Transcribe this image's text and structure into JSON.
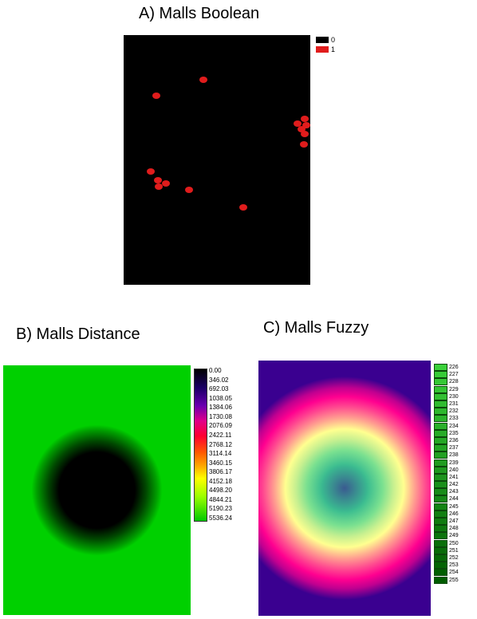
{
  "titles": {
    "a": "A) Malls Boolean",
    "b": "B) Malls Distance",
    "c": "C) Malls Fuzzy"
  },
  "legend_a": [
    {
      "label": "0",
      "color": "#000000"
    },
    {
      "label": "1",
      "color": "#e01c1c"
    }
  ],
  "legend_b": [
    "0.00",
    "346.02",
    "692.03",
    "1038.05",
    "1384.06",
    "1730.08",
    "2076.09",
    "2422.11",
    "2768.12",
    "3114.14",
    "3460.15",
    "3806.17",
    "4152.18",
    "4498.20",
    "4844.21",
    "5190.23",
    "5536.24"
  ],
  "legend_c": [
    "226",
    "227",
    "228",
    "229",
    "230",
    "231",
    "232",
    "233",
    "234",
    "235",
    "236",
    "237",
    "238",
    "239",
    "240",
    "241",
    "242",
    "243",
    "244",
    "245",
    "246",
    "247",
    "248",
    "249",
    "250",
    "251",
    "252",
    "253",
    "254",
    "255"
  ],
  "colors": {
    "mall": "#e01c1c",
    "boolean_background": "#000000"
  }
}
